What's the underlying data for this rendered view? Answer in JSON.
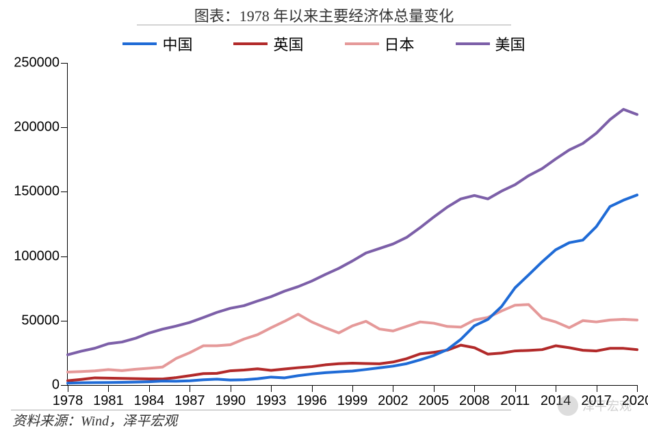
{
  "chart": {
    "type": "line",
    "title": "图表：1978 年以来主要经济体总量变化",
    "title_fontsize": 22,
    "source": "资料来源：Wind，泽平宏观",
    "watermark": "泽平宏观",
    "background_color": "#ffffff",
    "axis_color": "#000000",
    "text_color": "#333333",
    "line_width": 4,
    "legend": {
      "position": "top",
      "fontsize": 22,
      "items": [
        {
          "label": "中国",
          "color": "#1f6bd6"
        },
        {
          "label": "英国",
          "color": "#b22a2a"
        },
        {
          "label": "日本",
          "color": "#e59999"
        },
        {
          "label": "美国",
          "color": "#7c5fa8"
        }
      ]
    },
    "x_axis": {
      "min": 1978,
      "max": 2020,
      "tick_start": 1978,
      "tick_step": 3,
      "label_fontsize": 20
    },
    "y_axis": {
      "min": 0,
      "max": 250000,
      "tick_step": 50000,
      "label_fontsize": 20
    },
    "years": [
      1978,
      1979,
      1980,
      1981,
      1982,
      1983,
      1984,
      1985,
      1986,
      1987,
      1988,
      1989,
      1990,
      1991,
      1992,
      1993,
      1994,
      1995,
      1996,
      1997,
      1998,
      1999,
      2000,
      2001,
      2002,
      2003,
      2004,
      2005,
      2006,
      2007,
      2008,
      2009,
      2010,
      2011,
      2012,
      2013,
      2014,
      2015,
      2016,
      2017,
      2018,
      2019,
      2020
    ],
    "series": [
      {
        "name": "美国",
        "color": "#7c5fa8",
        "values": [
          23500,
          26300,
          28600,
          32100,
          33400,
          36300,
          40400,
          43400,
          45800,
          48600,
          52400,
          56400,
          59600,
          61600,
          65200,
          68600,
          72900,
          76400,
          80700,
          85800,
          90600,
          96300,
          102500,
          106000,
          109500,
          114600,
          122200,
          130400,
          138100,
          144500,
          147100,
          144500,
          150500,
          155500,
          162500,
          168000,
          175500,
          182500,
          187500,
          195500,
          206000,
          214000,
          210000
        ]
      },
      {
        "name": "日本",
        "color": "#e59999",
        "values": [
          10100,
          10500,
          11000,
          12000,
          11200,
          12300,
          13100,
          14000,
          20700,
          25100,
          30500,
          30500,
          31300,
          35700,
          39100,
          44500,
          49500,
          55000,
          49000,
          44500,
          40500,
          46000,
          49500,
          43500,
          42000,
          45500,
          49000,
          48000,
          45500,
          45000,
          50500,
          52500,
          57500,
          62000,
          62500,
          52000,
          49000,
          44500,
          50000,
          49000,
          50500,
          51000,
          50500
        ]
      },
      {
        "name": "英国",
        "color": "#b22a2a",
        "values": [
          3400,
          4400,
          5600,
          5400,
          5200,
          5000,
          4800,
          4700,
          5800,
          7300,
          8900,
          9100,
          11100,
          11700,
          12600,
          11400,
          12500,
          13500,
          14300,
          15700,
          16600,
          17000,
          16700,
          16500,
          17900,
          20500,
          24200,
          25400,
          27100,
          31000,
          29000,
          24000,
          24800,
          26500,
          26900,
          27500,
          30500,
          29000,
          27000,
          26500,
          28500,
          28500,
          27500
        ]
      },
      {
        "name": "中国",
        "color": "#1f6bd6",
        "values": [
          1500,
          1800,
          1900,
          2000,
          2100,
          2300,
          2600,
          3100,
          3000,
          3300,
          4100,
          4600,
          3900,
          4100,
          4900,
          6200,
          5600,
          7300,
          8600,
          9600,
          10300,
          10900,
          12100,
          13400,
          14700,
          16600,
          19600,
          22900,
          27500,
          35500,
          46000,
          51000,
          60900,
          75500,
          85500,
          95700,
          105000,
          110500,
          112500,
          123000,
          138500,
          143500,
          147500
        ]
      }
    ]
  }
}
